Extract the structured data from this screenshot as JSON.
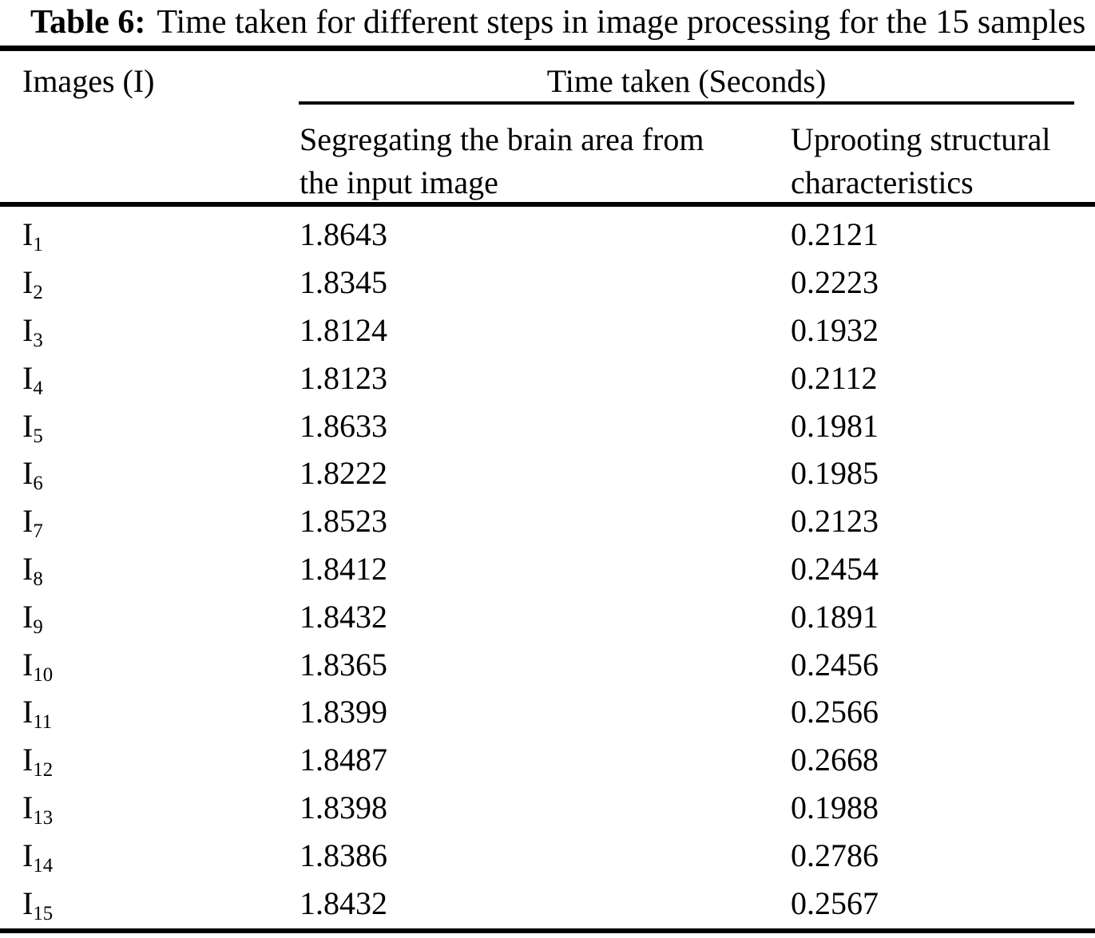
{
  "title": {
    "prefix": "Table 6:",
    "text": "Time taken for different steps in image processing for the 15 samples"
  },
  "table": {
    "images_header": "Images (I)",
    "span_header": "Time taken (Seconds)",
    "col_segregating": "Segregating the brain area from the input image",
    "col_uprooting": "Uprooting structural characteristics",
    "rows": [
      {
        "label_base": "I",
        "label_sub": "1",
        "segregating": "1.8643",
        "uprooting": "0.2121"
      },
      {
        "label_base": "I",
        "label_sub": "2",
        "segregating": "1.8345",
        "uprooting": "0.2223"
      },
      {
        "label_base": "I",
        "label_sub": "3",
        "segregating": "1.8124",
        "uprooting": "0.1932"
      },
      {
        "label_base": "I",
        "label_sub": "4",
        "segregating": "1.8123",
        "uprooting": "0.2112"
      },
      {
        "label_base": "I",
        "label_sub": "5",
        "segregating": "1.8633",
        "uprooting": "0.1981"
      },
      {
        "label_base": "I",
        "label_sub": "6",
        "segregating": "1.8222",
        "uprooting": "0.1985"
      },
      {
        "label_base": "I",
        "label_sub": "7",
        "segregating": "1.8523",
        "uprooting": "0.2123"
      },
      {
        "label_base": "I",
        "label_sub": "8",
        "segregating": "1.8412",
        "uprooting": "0.2454"
      },
      {
        "label_base": "I",
        "label_sub": "9",
        "segregating": "1.8432",
        "uprooting": "0.1891"
      },
      {
        "label_base": "I",
        "label_sub": "10",
        "segregating": "1.8365",
        "uprooting": "0.2456"
      },
      {
        "label_base": "I",
        "label_sub": "11",
        "segregating": "1.8399",
        "uprooting": "0.2566"
      },
      {
        "label_base": "I",
        "label_sub": "12",
        "segregating": "1.8487",
        "uprooting": "0.2668"
      },
      {
        "label_base": "I",
        "label_sub": "13",
        "segregating": "1.8398",
        "uprooting": "0.1988"
      },
      {
        "label_base": "I",
        "label_sub": "14",
        "segregating": "1.8386",
        "uprooting": "0.2786"
      },
      {
        "label_base": "I",
        "label_sub": "15",
        "segregating": "1.8432",
        "uprooting": "0.2567"
      }
    ]
  }
}
